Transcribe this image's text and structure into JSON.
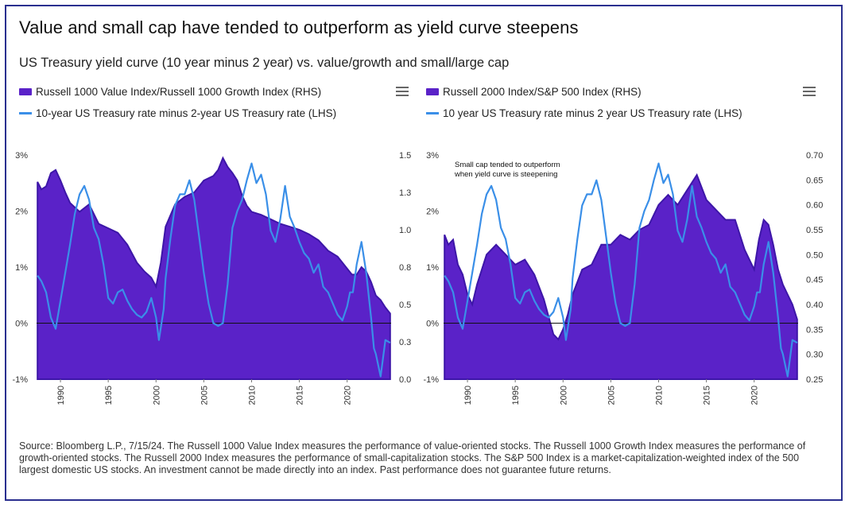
{
  "title": "Value and small cap have tended to outperform as yield curve steepens",
  "subtitle": "US Treasury yield curve (10 year minus 2 year) vs. value/growth and small/large cap",
  "source": "Source: Bloomberg L.P., 7/15/24. The Russell 1000 Value Index measures the performance of value-oriented stocks. The Russell 1000 Growth Index measures the performance of growth-oriented stocks. The Russell 2000 Index measures the performance of small-capitalization stocks. The S&P 500 Index is a market-capitalization-weighted index of the 500 largest domestic US stocks. An investment cannot be made directly into an index. Past performance does not guarantee future returns.",
  "colors": {
    "area": "#5a22c8",
    "area_edge": "#3d16a8",
    "line": "#3a8fe8"
  },
  "chart_data": [
    {
      "type": "area",
      "title": "",
      "legend": [
        "Russell 1000 Value Index/Russell 1000 Growth Index (RHS)",
        "10-year US Treasury rate minus 2-year US Treasury rate (LHS)"
      ],
      "x_range": [
        1987.5,
        2024.6
      ],
      "x_ticks": [
        "1990",
        "1995",
        "2000",
        "2005",
        "2010",
        "2015",
        "2020"
      ],
      "left_axis": {
        "ylim": [
          -1,
          3
        ],
        "ticks": [
          "-1%",
          "0%",
          "1%",
          "2%",
          "3%"
        ]
      },
      "right_axis": {
        "ylim": [
          0.0,
          1.5
        ],
        "ticks": [
          "0.0",
          "0.3",
          "0.5",
          "0.8",
          "1.0",
          "1.3",
          "1.5"
        ]
      },
      "series": [
        {
          "name": "Russell 1000 Value Index/Russell 1000 Growth Index (RHS)",
          "axis": "right",
          "kind": "area",
          "x": [
            1987.6,
            1988.0,
            1988.5,
            1989.0,
            1989.5,
            1990.0,
            1990.5,
            1991.0,
            1992.0,
            1993.0,
            1994.0,
            1995.0,
            1996.0,
            1997.0,
            1998.0,
            1998.8,
            1999.5,
            2000.0,
            2000.5,
            2001.0,
            2002.0,
            2003.0,
            2004.0,
            2005.0,
            2006.0,
            2006.5,
            2007.0,
            2007.5,
            2008.0,
            2008.5,
            2009.0,
            2009.5,
            2010.0,
            2011.0,
            2012.0,
            2013.0,
            2014.0,
            2015.0,
            2016.0,
            2017.0,
            2018.0,
            2019.0,
            2020.0,
            2020.5,
            2021.0,
            2021.5,
            2022.0,
            2022.5,
            2023.0,
            2023.5,
            2024.0,
            2024.5
          ],
          "values": [
            1.32,
            1.27,
            1.29,
            1.38,
            1.4,
            1.33,
            1.25,
            1.18,
            1.12,
            1.17,
            1.04,
            1.01,
            0.98,
            0.9,
            0.78,
            0.72,
            0.68,
            0.62,
            0.78,
            1.02,
            1.17,
            1.22,
            1.25,
            1.33,
            1.36,
            1.4,
            1.48,
            1.42,
            1.38,
            1.33,
            1.23,
            1.16,
            1.12,
            1.1,
            1.07,
            1.04,
            1.02,
            1.0,
            0.97,
            0.93,
            0.86,
            0.82,
            0.74,
            0.7,
            0.7,
            0.75,
            0.72,
            0.65,
            0.56,
            0.53,
            0.48,
            0.44
          ]
        },
        {
          "name": "10-year US Treasury rate minus 2-year US Treasury rate (LHS)",
          "axis": "left",
          "kind": "line",
          "x": [
            1987.6,
            1988.0,
            1988.5,
            1989.0,
            1989.5,
            1990.0,
            1990.5,
            1991.0,
            1991.5,
            1992.0,
            1992.5,
            1993.0,
            1993.5,
            1994.0,
            1994.5,
            1995.0,
            1995.5,
            1996.0,
            1996.5,
            1997.0,
            1997.5,
            1998.0,
            1998.5,
            1999.0,
            1999.5,
            2000.0,
            2000.3,
            2000.8,
            2001.0,
            2001.5,
            2002.0,
            2002.5,
            2003.0,
            2003.5,
            2004.0,
            2004.5,
            2005.0,
            2005.5,
            2006.0,
            2006.5,
            2007.0,
            2007.5,
            2008.0,
            2008.5,
            2009.0,
            2009.5,
            2010.0,
            2010.5,
            2011.0,
            2011.5,
            2012.0,
            2012.5,
            2013.0,
            2013.5,
            2014.0,
            2014.5,
            2015.0,
            2015.5,
            2016.0,
            2016.5,
            2017.0,
            2017.5,
            2018.0,
            2018.5,
            2019.0,
            2019.5,
            2020.0,
            2020.3,
            2020.6,
            2021.0,
            2021.5,
            2022.0,
            2022.5,
            2022.8,
            2023.0,
            2023.5,
            2024.0,
            2024.5
          ],
          "values": [
            0.85,
            0.75,
            0.55,
            0.1,
            -0.1,
            0.4,
            0.9,
            1.4,
            1.95,
            2.3,
            2.45,
            2.2,
            1.7,
            1.5,
            1.05,
            0.45,
            0.35,
            0.55,
            0.6,
            0.4,
            0.25,
            0.15,
            0.1,
            0.2,
            0.45,
            0.1,
            -0.3,
            0.25,
            0.8,
            1.5,
            2.1,
            2.3,
            2.3,
            2.55,
            2.2,
            1.55,
            0.9,
            0.35,
            0.0,
            -0.05,
            0.0,
            0.7,
            1.7,
            2.0,
            2.2,
            2.55,
            2.85,
            2.5,
            2.65,
            2.3,
            1.65,
            1.45,
            1.85,
            2.45,
            1.9,
            1.7,
            1.45,
            1.25,
            1.15,
            0.9,
            1.05,
            0.65,
            0.55,
            0.35,
            0.15,
            0.05,
            0.3,
            0.55,
            0.55,
            1.05,
            1.45,
            0.9,
            0.1,
            -0.45,
            -0.55,
            -0.95,
            -0.3,
            -0.35
          ]
        }
      ]
    },
    {
      "type": "area",
      "title": "",
      "annotation": [
        "Small cap tended to outperform",
        "when yield curve is steepening"
      ],
      "legend": [
        "Russell 2000 Index/S&P 500 Index (RHS)",
        "10 year US Treasury rate minus 2 year US Treasury rate (LHS)"
      ],
      "x_range": [
        1987.5,
        2024.6
      ],
      "x_ticks": [
        "1990",
        "1995",
        "2000",
        "2005",
        "2010",
        "2015",
        "2020"
      ],
      "left_axis": {
        "ylim": [
          -1,
          3
        ],
        "ticks": [
          "-1%",
          "0%",
          "1%",
          "2%",
          "3%"
        ]
      },
      "right_axis": {
        "ylim": [
          0.25,
          0.7
        ],
        "ticks": [
          "0.25",
          "0.30",
          "0.35",
          "0.40",
          "0.45",
          "0.50",
          "0.55",
          "0.60",
          "0.65",
          "0.70"
        ]
      },
      "series": [
        {
          "name": "Russell 2000 Index/S&P 500 Index (RHS)",
          "axis": "right",
          "kind": "area",
          "x": [
            1987.6,
            1988.0,
            1988.5,
            1989.0,
            1989.5,
            1990.0,
            1990.5,
            1991.0,
            1991.5,
            1992.0,
            1993.0,
            1994.0,
            1995.0,
            1996.0,
            1997.0,
            1998.0,
            1999.0,
            1999.5,
            2000.0,
            2000.5,
            2001.0,
            2002.0,
            2003.0,
            2004.0,
            2005.0,
            2006.0,
            2007.0,
            2008.0,
            2009.0,
            2010.0,
            2011.0,
            2012.0,
            2013.0,
            2014.0,
            2015.0,
            2016.0,
            2017.0,
            2018.0,
            2019.0,
            2020.0,
            2020.5,
            2021.0,
            2021.5,
            2022.0,
            2022.5,
            2023.0,
            2023.5,
            2024.0,
            2024.5
          ],
          "values": [
            0.54,
            0.52,
            0.53,
            0.48,
            0.46,
            0.42,
            0.4,
            0.44,
            0.47,
            0.5,
            0.52,
            0.5,
            0.48,
            0.49,
            0.46,
            0.41,
            0.34,
            0.33,
            0.35,
            0.38,
            0.42,
            0.47,
            0.48,
            0.52,
            0.52,
            0.54,
            0.53,
            0.55,
            0.56,
            0.6,
            0.62,
            0.6,
            0.63,
            0.66,
            0.61,
            0.59,
            0.57,
            0.57,
            0.51,
            0.47,
            0.53,
            0.57,
            0.56,
            0.52,
            0.47,
            0.44,
            0.42,
            0.4,
            0.37
          ]
        },
        {
          "name": "10 year US Treasury rate minus 2 year US Treasury rate (LHS)",
          "axis": "left",
          "kind": "line",
          "x": [
            1987.6,
            1988.0,
            1988.5,
            1989.0,
            1989.5,
            1990.0,
            1990.5,
            1991.0,
            1991.5,
            1992.0,
            1992.5,
            1993.0,
            1993.5,
            1994.0,
            1994.5,
            1995.0,
            1995.5,
            1996.0,
            1996.5,
            1997.0,
            1997.5,
            1998.0,
            1998.5,
            1999.0,
            1999.5,
            2000.0,
            2000.3,
            2000.8,
            2001.0,
            2001.5,
            2002.0,
            2002.5,
            2003.0,
            2003.5,
            2004.0,
            2004.5,
            2005.0,
            2005.5,
            2006.0,
            2006.5,
            2007.0,
            2007.5,
            2008.0,
            2008.5,
            2009.0,
            2009.5,
            2010.0,
            2010.5,
            2011.0,
            2011.5,
            2012.0,
            2012.5,
            2013.0,
            2013.5,
            2014.0,
            2014.5,
            2015.0,
            2015.5,
            2016.0,
            2016.5,
            2017.0,
            2017.5,
            2018.0,
            2018.5,
            2019.0,
            2019.5,
            2020.0,
            2020.3,
            2020.6,
            2021.0,
            2021.5,
            2022.0,
            2022.5,
            2022.8,
            2023.0,
            2023.5,
            2024.0,
            2024.5
          ],
          "values": [
            0.85,
            0.75,
            0.55,
            0.1,
            -0.1,
            0.4,
            0.9,
            1.4,
            1.95,
            2.3,
            2.45,
            2.2,
            1.7,
            1.5,
            1.05,
            0.45,
            0.35,
            0.55,
            0.6,
            0.4,
            0.25,
            0.15,
            0.1,
            0.2,
            0.45,
            0.1,
            -0.3,
            0.25,
            0.8,
            1.5,
            2.1,
            2.3,
            2.3,
            2.55,
            2.2,
            1.55,
            0.9,
            0.35,
            0.0,
            -0.05,
            0.0,
            0.7,
            1.7,
            2.0,
            2.2,
            2.55,
            2.85,
            2.5,
            2.65,
            2.3,
            1.65,
            1.45,
            1.85,
            2.45,
            1.9,
            1.7,
            1.45,
            1.25,
            1.15,
            0.9,
            1.05,
            0.65,
            0.55,
            0.35,
            0.15,
            0.05,
            0.3,
            0.55,
            0.55,
            1.05,
            1.45,
            0.9,
            0.1,
            -0.45,
            -0.55,
            -0.95,
            -0.3,
            -0.35
          ]
        }
      ]
    }
  ]
}
